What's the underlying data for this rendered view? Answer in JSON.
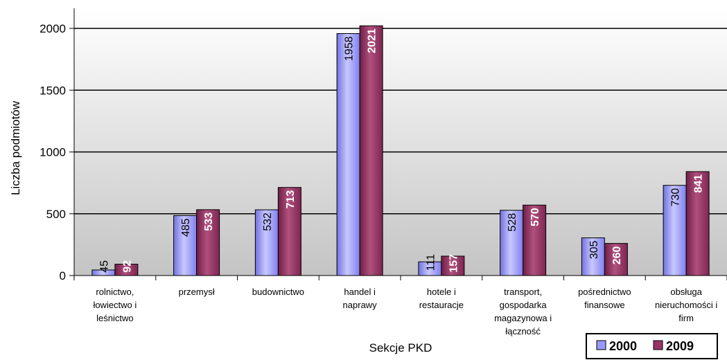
{
  "chart_data": {
    "type": "bar",
    "categories": [
      [
        "rolnictwo,",
        "łowiectwo i",
        "leśnictwo"
      ],
      [
        "przemysł"
      ],
      [
        "budownictwo"
      ],
      [
        "handel i",
        "naprawy"
      ],
      [
        "hotele i",
        "restauracje"
      ],
      [
        "transport,",
        "gospodarka",
        "magazynowa i",
        "łączność"
      ],
      [
        "pośrednictwo",
        "finansowe"
      ],
      [
        "obsługa",
        "nieruchomości i",
        "firm"
      ]
    ],
    "series": [
      {
        "name": "2000",
        "values": [
          45,
          485,
          532,
          1958,
          111,
          528,
          305,
          730
        ],
        "color": "#9999ff",
        "labels": [
          "45",
          "485",
          "532",
          "1958",
          "111",
          "528",
          "305",
          "730"
        ]
      },
      {
        "name": "2009",
        "values": [
          92,
          533,
          713,
          2021,
          157,
          570,
          260,
          841
        ],
        "color": "#993366",
        "labels": [
          "92",
          "533",
          "713",
          "2021",
          "157",
          "570",
          "260",
          "841"
        ]
      }
    ],
    "yticks": [
      "0",
      "500",
      "1000",
      "1500",
      "2000"
    ],
    "ylim": [
      0,
      2000
    ],
    "xlabel": "Sekcje PKD",
    "ylabel": "Liczba podmiotów",
    "grid": true,
    "legend_position": "bottom-right"
  }
}
